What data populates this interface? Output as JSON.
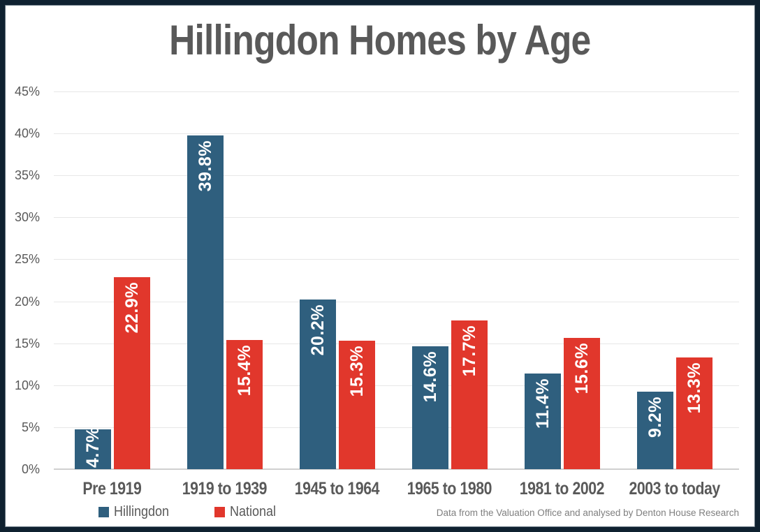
{
  "header": {
    "title": "Hillingdon Homes by Age"
  },
  "footer": {
    "note": "Data from the Valuation Office and analysed by Denton House Research"
  },
  "legend": [
    {
      "label": "Hillingdon",
      "color": "#2F5F7E"
    },
    {
      "label": "National",
      "color": "#E1372C"
    }
  ],
  "colors": {
    "hillingdon_blue": "#2F5F7E",
    "national_red": "#E1372C",
    "frame_border": "#0F2130",
    "frame_inner_line": "#5E6E7A",
    "text_gray": "#595959",
    "footer_gray": "#7F7F7F",
    "gridline": "#E7E7E7",
    "axis_line": "#D0D0D0",
    "bar_label_text": "#FFFFFF"
  },
  "chart_data": {
    "type": "bar",
    "title": "Hillingdon Homes by Age",
    "categories": [
      "Pre 1919",
      "1919 to 1939",
      "1945 to 1964",
      "1965 to 1980",
      "1981 to 2002",
      "2003 to today"
    ],
    "series": [
      {
        "name": "Hillingdon",
        "color": "#2F5F7E",
        "values": [
          4.7,
          39.8,
          20.2,
          14.6,
          11.4,
          9.2
        ],
        "labels": [
          "4.7%",
          "39.8%",
          "20.2%",
          "14.6%",
          "11.4%",
          "9.2%"
        ]
      },
      {
        "name": "National",
        "color": "#E1372C",
        "values": [
          22.9,
          15.4,
          15.3,
          17.7,
          15.6,
          13.3
        ],
        "labels": [
          "22.9%",
          "15.4%",
          "15.3%",
          "17.7%",
          "15.6%",
          "13.3%"
        ]
      }
    ],
    "xlabel": "",
    "ylabel": "",
    "ylim": [
      0,
      45
    ],
    "y_tick_values": [
      0,
      5,
      10,
      15,
      20,
      25,
      30,
      35,
      40,
      45
    ],
    "y_tick_labels": [
      "0%",
      "5%",
      "10%",
      "15%",
      "20%",
      "25%",
      "30%",
      "35%",
      "40%",
      "45%"
    ],
    "grid": true,
    "legend_position": "bottom-left",
    "data_label_style": "rotated 90 degrees reading bottom-to-top, white bold, inside end of bar"
  }
}
